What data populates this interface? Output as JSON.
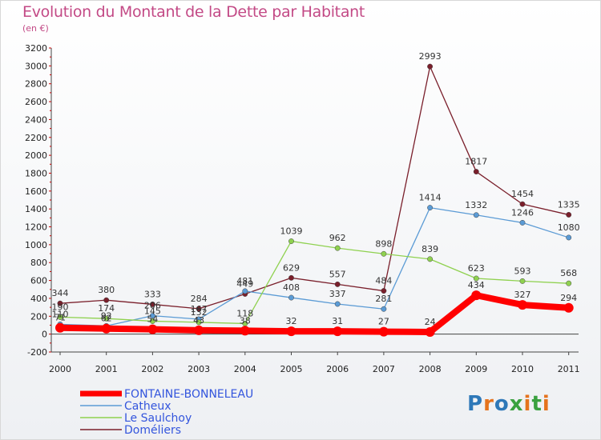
{
  "title": "Evolution du Montant de la Dette par Habitant",
  "subtitle": "(en €)",
  "logo": {
    "text": "Proxiti",
    "letters": [
      "P",
      "r",
      "o",
      "x",
      "i",
      "t",
      "i"
    ],
    "colors": [
      "#2e78b8",
      "#e5731d",
      "#2e78b8",
      "#3aa13f",
      "#e5731d",
      "#3aa13f",
      "#e5731d"
    ]
  },
  "chart_data": {
    "type": "line",
    "x": [
      "2000",
      "2001",
      "2002",
      "2003",
      "2004",
      "2005",
      "2006",
      "2007",
      "2008",
      "2009",
      "2010",
      "2011"
    ],
    "ylim": [
      -200,
      3200
    ],
    "yticks": [
      "-200",
      "0",
      "200",
      "400",
      "600",
      "800",
      "1000",
      "1200",
      "1400",
      "1600",
      "1800",
      "2000",
      "2200",
      "2400",
      "2600",
      "2800",
      "3000",
      "3200"
    ],
    "grid": false,
    "legend_position": "bottom-left",
    "series": [
      {
        "name": "Doméliers",
        "color": "#7a1f2b",
        "values": [
          344,
          380,
          333,
          284,
          449,
          629,
          557,
          484,
          2993,
          1817,
          1454,
          1335
        ],
        "labels": [
          "344",
          "380",
          "333",
          "284",
          "449",
          "629",
          "557",
          "484",
          "2993",
          "1817",
          "1454",
          "1335"
        ]
      },
      {
        "name": "Catheux",
        "color": "#5b9bd5",
        "values": [
          110,
          92,
          206,
          167,
          481,
          408,
          337,
          281,
          1414,
          1332,
          1246,
          1080
        ],
        "labels": [
          "110",
          "92",
          "206",
          "167",
          "481",
          "408",
          "337",
          "281",
          "1414",
          "1332",
          "1246",
          "1080"
        ]
      },
      {
        "name": "Le Saulchoy",
        "color": "#8fd14f",
        "values": [
          190,
          174,
          145,
          132,
          118,
          1039,
          962,
          898,
          839,
          623,
          593,
          568
        ],
        "labels": [
          "190",
          "174",
          "145",
          "132",
          "118",
          "1039",
          "962",
          "898",
          "839",
          "623",
          "593",
          "568"
        ]
      },
      {
        "name": "FONTAINE-BONNELEAU",
        "color": "#ff0000",
        "values": [
          71,
          62,
          54,
          43,
          38,
          32,
          31,
          27,
          24,
          434,
          327,
          294
        ],
        "labels": [
          "71",
          "62",
          "54",
          "43",
          "38",
          "32",
          "31",
          "27",
          "24",
          "434",
          "327",
          "294"
        ]
      }
    ],
    "legend": [
      {
        "name": "FONTAINE-BONNELEAU",
        "color": "#ff0000",
        "text_color": "#3355dd"
      },
      {
        "name": "Catheux",
        "color": "#5b9bd5",
        "text_color": "#3355dd"
      },
      {
        "name": "Le Saulchoy",
        "color": "#8fd14f",
        "text_color": "#3355dd"
      },
      {
        "name": "Doméliers",
        "color": "#7a1f2b",
        "text_color": "#3355dd"
      }
    ]
  }
}
